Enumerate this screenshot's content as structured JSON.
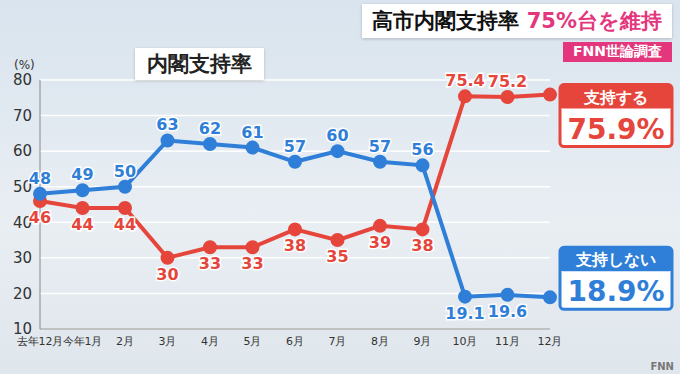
{
  "chart_data": {
    "type": "line",
    "headline": "高市内閣支持率",
    "headline_highlight": "75%台を維持",
    "source": "FNN世論調査",
    "watermark": "FNN",
    "title": "内閣支持率",
    "y_label": "(%)",
    "categories": [
      "去年12月",
      "今年1月",
      "2月",
      "3月",
      "4月",
      "5月",
      "6月",
      "7月",
      "8月",
      "9月",
      "10月",
      "11月",
      "12月"
    ],
    "series": [
      {
        "name": "支持する",
        "color": "#e5453b",
        "values": [
          46,
          44,
          44,
          30,
          33,
          33,
          38,
          35,
          39,
          38,
          75.4,
          75.2,
          75.9
        ],
        "value_labels": [
          "46",
          "44",
          "44",
          "30",
          "33",
          "33",
          "38",
          "35",
          "39",
          "38",
          "75.4",
          "75.2",
          "75.9%"
        ]
      },
      {
        "name": "支持しない",
        "color": "#2f7fd8",
        "values": [
          48,
          49,
          50,
          63,
          62,
          61,
          57,
          60,
          57,
          56,
          19.1,
          19.6,
          18.9
        ],
        "value_labels": [
          "48",
          "49",
          "50",
          "63",
          "62",
          "61",
          "57",
          "60",
          "57",
          "56",
          "19.1",
          "19.6",
          "18.9%"
        ]
      }
    ],
    "ylim": [
      10,
      80
    ],
    "yticks": [
      10,
      20,
      30,
      40,
      50,
      60,
      70,
      80
    ],
    "grid": true,
    "data_labels": true,
    "marker": "circle"
  }
}
